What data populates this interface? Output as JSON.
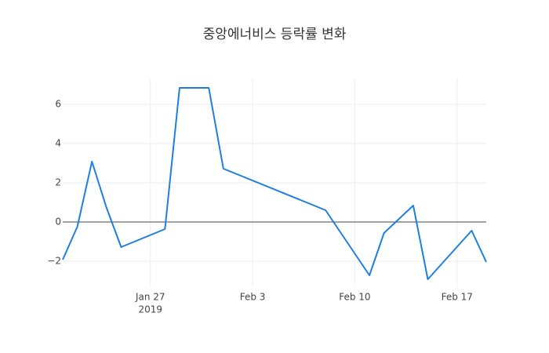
{
  "chart_data": {
    "type": "line",
    "title": "중앙에너비스 등락률 변화",
    "x": [
      "2019-01-21",
      "2019-01-22",
      "2019-01-23",
      "2019-01-24",
      "2019-01-25",
      "2019-01-28",
      "2019-01-29",
      "2019-01-31",
      "2019-02-01",
      "2019-02-08",
      "2019-02-11",
      "2019-02-12",
      "2019-02-14",
      "2019-02-15",
      "2019-02-18",
      "2019-02-19"
    ],
    "series": [
      {
        "color": "#1f7fe0",
        "values": [
          -1.92,
          -0.24,
          3.08,
          0.72,
          -1.28,
          -0.36,
          6.84,
          6.84,
          2.72,
          0.6,
          -2.72,
          -0.56,
          0.84,
          -2.92,
          -0.44,
          -2.04
        ]
      }
    ],
    "xlim": [
      "2019-01-21",
      "2019-02-19"
    ],
    "xticks": [
      {
        "value": "2019-01-27",
        "label": "Jan 27"
      },
      {
        "value": "2019-02-03",
        "label": "Feb 3"
      },
      {
        "value": "2019-02-10",
        "label": "Feb 10"
      },
      {
        "value": "2019-02-17",
        "label": "Feb 17"
      }
    ],
    "xtick_year": "2019",
    "ylim": [
      -3.28,
      7.32
    ],
    "yticks": [
      {
        "value": -2,
        "label": "−2"
      },
      0,
      2,
      4,
      6
    ],
    "grid": true,
    "zeroline": true
  }
}
